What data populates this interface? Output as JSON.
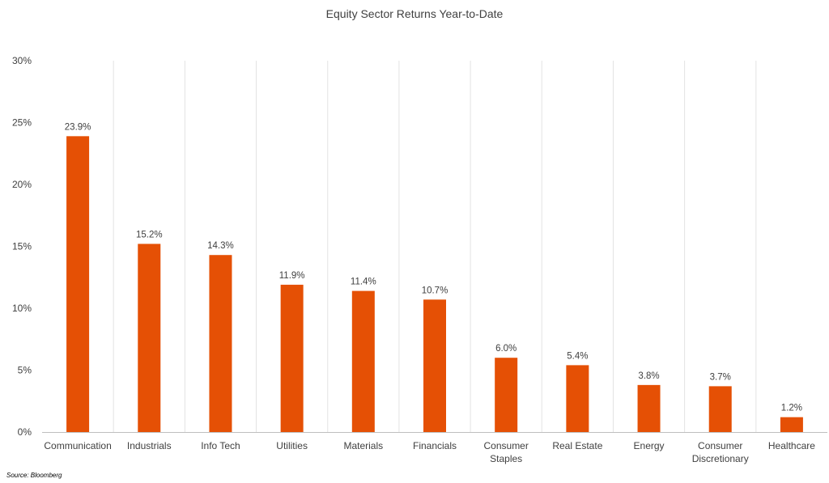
{
  "chart_data": {
    "type": "bar",
    "title": "Equity Sector Returns Year-to-Date",
    "xlabel": "",
    "ylabel": "",
    "categories": [
      [
        "Communication"
      ],
      [
        "Industrials"
      ],
      [
        "Info Tech"
      ],
      [
        "Utilities"
      ],
      [
        "Materials"
      ],
      [
        "Financials"
      ],
      [
        "Consumer",
        "Staples"
      ],
      [
        "Real Estate"
      ],
      [
        "Energy"
      ],
      [
        "Consumer",
        "Discretionary"
      ],
      [
        "Healthcare"
      ]
    ],
    "values": [
      23.9,
      15.2,
      14.3,
      11.9,
      11.4,
      10.7,
      6.0,
      5.4,
      3.8,
      3.7,
      1.2
    ],
    "data_labels": [
      "23.9%",
      "15.2%",
      "14.3%",
      "11.9%",
      "11.4%",
      "10.7%",
      "6.0%",
      "5.4%",
      "3.8%",
      "3.7%",
      "1.2%"
    ],
    "ylim": [
      0,
      30
    ],
    "yticks": [
      0,
      5,
      10,
      15,
      20,
      25,
      30
    ],
    "ytick_labels": [
      "0%",
      "5%",
      "10%",
      "15%",
      "20%",
      "25%",
      "30%"
    ],
    "grid": "vertical category separators",
    "legend": "none",
    "bar_color": "#E55005",
    "grid_color": "#E3E3E3",
    "axis_color": "#BFBFBF",
    "text_color": "#404040"
  },
  "source_note": "Source: Bloomberg"
}
